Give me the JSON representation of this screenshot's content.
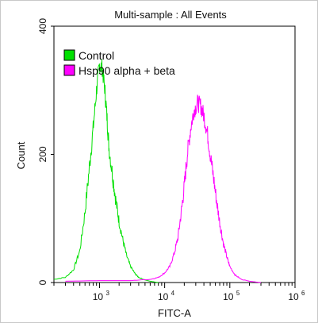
{
  "chart_data": {
    "type": "line",
    "title": "Multi-sample : All Events",
    "xlabel": "FITC-A",
    "ylabel": "Count",
    "xscale": "log",
    "xlim": [
      200,
      1000000
    ],
    "ylim": [
      0,
      400
    ],
    "y_ticks": [
      {
        "value": 0,
        "label": "0"
      },
      {
        "value": 200,
        "label": "200"
      },
      {
        "value": 400,
        "label": "400"
      }
    ],
    "x_ticks": [
      {
        "value": 1000,
        "base": "10",
        "exp": "3"
      },
      {
        "value": 10000,
        "base": "10",
        "exp": "4"
      },
      {
        "value": 100000,
        "base": "10",
        "exp": "5"
      },
      {
        "value": 1000000,
        "base": "10",
        "exp": "6"
      }
    ],
    "legend_position": "top-left",
    "series": [
      {
        "name": "Control",
        "color": "#00e000",
        "x": [
          200,
          300,
          400,
          500,
          600,
          700,
          800,
          900,
          1000,
          1100,
          1200,
          1300,
          1400,
          1600,
          1800,
          2000,
          2300,
          2600,
          3000,
          3500,
          4000,
          5000,
          6000,
          8000
        ],
        "y": [
          5,
          8,
          20,
          50,
          110,
          180,
          240,
          300,
          340,
          335,
          305,
          260,
          210,
          165,
          125,
          95,
          65,
          42,
          25,
          14,
          8,
          4,
          2,
          0
        ]
      },
      {
        "name": "Hsp90 alpha + beta",
        "color": "#ff00ff",
        "x": [
          300,
          1000,
          3000,
          6000,
          8000,
          10000,
          12000,
          14000,
          16000,
          18000,
          20000,
          22000,
          25000,
          28000,
          32000,
          36000,
          40000,
          45000,
          50000,
          56000,
          63000,
          71000,
          80000,
          90000,
          100000,
          120000,
          150000,
          200000,
          300000
        ],
        "y": [
          2,
          3,
          3,
          5,
          8,
          15,
          25,
          45,
          70,
          110,
          150,
          195,
          240,
          268,
          280,
          275,
          260,
          235,
          200,
          165,
          125,
          90,
          60,
          40,
          25,
          12,
          5,
          2,
          0
        ]
      }
    ]
  }
}
